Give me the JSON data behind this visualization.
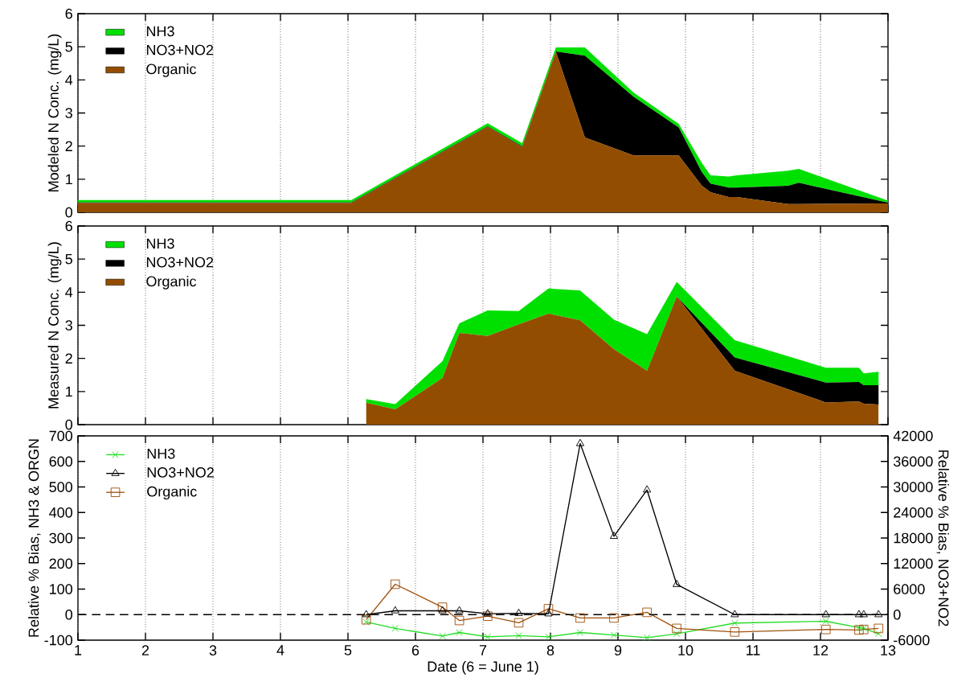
{
  "chart_data": [
    {
      "type": "area",
      "stacked": true,
      "ylabel": "Modeled N Conc. (mg/L)",
      "x": [
        1.0,
        5.05,
        7.07,
        7.58,
        8.08,
        8.51,
        9.23,
        9.9,
        10.24,
        10.37,
        10.64,
        10.76,
        11.52,
        11.68,
        13.0
      ],
      "series": [
        {
          "name": "Organic",
          "color": "#934d00",
          "values": [
            0.28,
            0.28,
            2.58,
            1.97,
            4.85,
            2.26,
            1.72,
            1.72,
            0.81,
            0.61,
            0.46,
            0.46,
            0.25,
            0.25,
            0.27
          ]
        },
        {
          "name": "NO3+NO2",
          "color": "#000000",
          "values": [
            0.02,
            0.02,
            0.02,
            0.02,
            0.01,
            2.47,
            1.77,
            0.84,
            0.41,
            0.26,
            0.29,
            0.29,
            0.55,
            0.64,
            0.02
          ]
        },
        {
          "name": "NH3",
          "color": "#00e000",
          "values": [
            0.07,
            0.07,
            0.09,
            0.1,
            0.12,
            0.25,
            0.13,
            0.11,
            0.28,
            0.25,
            0.33,
            0.37,
            0.46,
            0.42,
            0.06
          ]
        }
      ],
      "xlim": [
        1,
        13
      ],
      "xticks": [
        1,
        2,
        3,
        4,
        5,
        6,
        7,
        8,
        9,
        10,
        11,
        12,
        13
      ],
      "ylim": [
        0,
        6
      ],
      "yticks": [
        0,
        1,
        2,
        3,
        4,
        5,
        6
      ],
      "grid": "x",
      "legend": "top left",
      "tick_labels": "y"
    },
    {
      "type": "area",
      "stacked": true,
      "ylabel": "Measured N Conc. (mg/L)",
      "x": [
        5.27,
        5.7,
        6.4,
        6.65,
        7.07,
        7.53,
        7.97,
        8.44,
        8.94,
        9.43,
        9.87,
        10.73,
        12.08,
        12.57,
        12.64,
        12.86
      ],
      "series": [
        {
          "name": "Organic",
          "color": "#934d00",
          "values": [
            0.66,
            0.46,
            1.41,
            2.77,
            2.68,
            3.03,
            3.35,
            3.15,
            2.28,
            1.63,
            3.87,
            1.63,
            0.67,
            0.7,
            0.63,
            0.61
          ]
        },
        {
          "name": "NO3+NO2",
          "color": "#000000",
          "values": [
            0,
            0,
            0,
            0,
            0,
            0,
            0,
            0,
            0,
            0,
            0,
            0.4,
            0.6,
            0.59,
            0.56,
            0.58
          ]
        },
        {
          "name": "NH3",
          "color": "#00e000",
          "values": [
            0.11,
            0.16,
            0.51,
            0.29,
            0.77,
            0.4,
            0.76,
            0.9,
            0.89,
            1.1,
            0.44,
            0.52,
            0.45,
            0.43,
            0.36,
            0.41
          ]
        }
      ],
      "xlim": [
        1,
        13
      ],
      "xticks": [
        1,
        2,
        3,
        4,
        5,
        6,
        7,
        8,
        9,
        10,
        11,
        12,
        13
      ],
      "ylim": [
        0,
        6
      ],
      "yticks": [
        0,
        1,
        2,
        3,
        4,
        5,
        6
      ],
      "grid": "x",
      "legend": "top left",
      "tick_labels": "y"
    },
    {
      "type": "line",
      "xlabel": "Date (6 = June 1)",
      "ylabel": "Relative % Bias, NH3 & ORGN",
      "y2label": "Relative % Bias, NO3+NO2",
      "x": [
        5.27,
        5.7,
        6.4,
        6.65,
        7.07,
        7.53,
        7.97,
        8.44,
        8.94,
        9.43,
        9.87,
        10.73,
        12.08,
        12.57,
        12.64,
        12.86
      ],
      "series": [
        {
          "name": "NH3",
          "color": "#22dd22",
          "marker": "cross",
          "values": [
            -29,
            -54,
            -84,
            -70,
            -87,
            -82,
            -87,
            -70,
            -80,
            -90,
            -75,
            -33,
            -26,
            -51,
            -54,
            -75
          ]
        },
        {
          "name": "NO3+NO2",
          "color": "#000000",
          "marker": "triangle",
          "axis": "y2",
          "values": [
            0,
            900,
            900,
            900,
            200,
            300,
            200,
            40200,
            18400,
            29300,
            7100,
            0,
            0,
            0,
            0,
            0
          ]
        },
        {
          "name": "Organic",
          "color": "#a0520f",
          "marker": "square",
          "values": [
            -20,
            119,
            29,
            -23,
            -6,
            -32,
            23,
            -13,
            -13,
            9,
            -54,
            -68,
            -58,
            -60,
            -58,
            -54
          ]
        }
      ],
      "xlim": [
        1,
        13
      ],
      "xticks": [
        1,
        2,
        3,
        4,
        5,
        6,
        7,
        8,
        9,
        10,
        11,
        12,
        13
      ],
      "ylim": [
        -100,
        700
      ],
      "yticks": [
        -100,
        0,
        100,
        200,
        300,
        400,
        500,
        600,
        700
      ],
      "y2lim": [
        -6000,
        42000
      ],
      "y2ticks": [
        -6000,
        0,
        6000,
        12000,
        18000,
        24000,
        30000,
        36000,
        42000
      ],
      "ref_lines": [
        {
          "axis": "y",
          "value": 0,
          "line_style": "dashed"
        }
      ],
      "grid": "x",
      "legend": "top left"
    }
  ]
}
